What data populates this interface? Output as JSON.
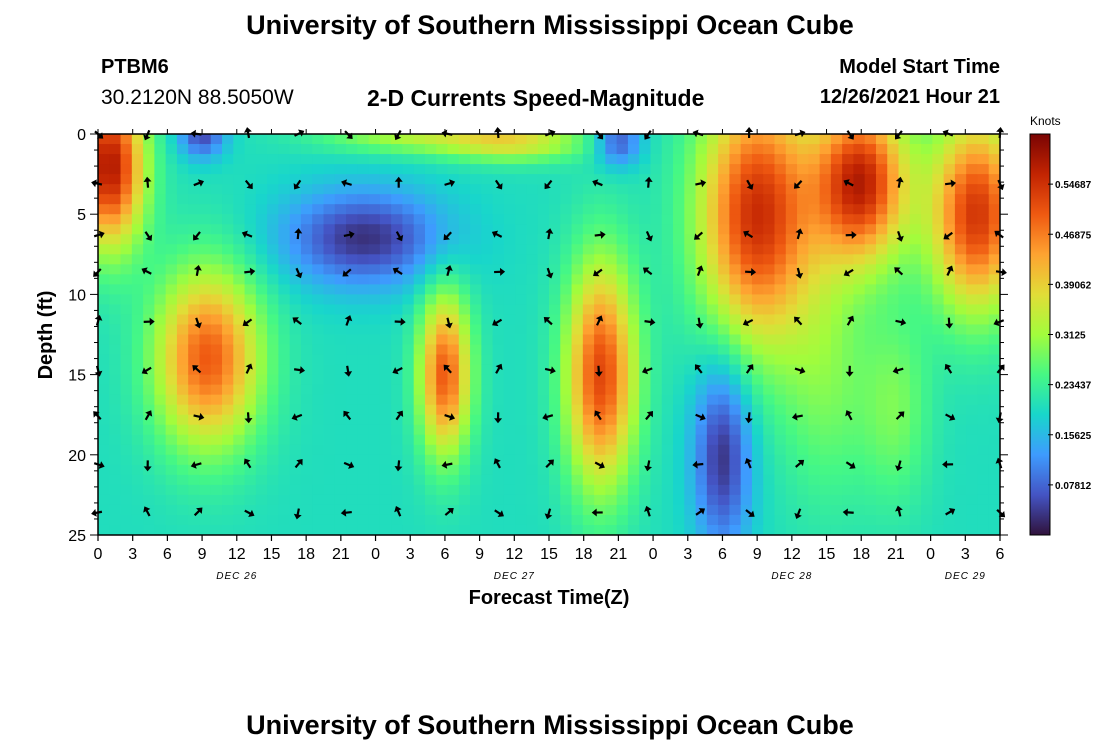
{
  "header": {
    "title": "University of Southern Mississippi Ocean Cube",
    "station_id": "PTBM6",
    "coordinates": "30.2120N  88.5050W",
    "subtitle": "2-D Currents Speed-Magnitude",
    "model_start_label": "Model Start Time",
    "model_start_value": "12/26/2021 Hour 21"
  },
  "footer": {
    "title": "University of Southern Mississippi Ocean Cube"
  },
  "chart_data": {
    "type": "heatmap",
    "title": "2-D Currents Speed-Magnitude",
    "xlabel": "Forecast Time(Z)",
    "ylabel": "Depth (ft)",
    "x_ticks": [
      "0",
      "3",
      "6",
      "9",
      "12",
      "15",
      "18",
      "21",
      "0",
      "3",
      "6",
      "9",
      "12",
      "15",
      "18",
      "21",
      "0",
      "3",
      "6",
      "9",
      "12",
      "15",
      "18",
      "21",
      "0",
      "3",
      "6"
    ],
    "x_tick_hours": [
      0,
      3,
      6,
      9,
      12,
      15,
      18,
      21,
      24,
      27,
      30,
      33,
      36,
      39,
      42,
      45,
      48,
      51,
      54,
      57,
      60,
      63,
      66,
      69,
      72,
      75,
      78
    ],
    "day_labels": [
      {
        "text": "DEC 26",
        "hour": 12
      },
      {
        "text": "DEC 27",
        "hour": 36
      },
      {
        "text": "DEC 28",
        "hour": 60
      },
      {
        "text": "DEC 29",
        "hour": 75
      }
    ],
    "xlim": [
      0,
      78
    ],
    "y_ticks": [
      0,
      5,
      10,
      15,
      20,
      25
    ],
    "ylim": [
      0,
      25
    ],
    "colorbar": {
      "label": "Knots",
      "range": [
        0,
        0.625
      ],
      "tick_labels": [
        "0.54687",
        "0.46875",
        "0.39062",
        "0.3125",
        "0.23437",
        "0.15625",
        "0.07812"
      ],
      "tick_values": [
        0.54687,
        0.46875,
        0.39062,
        0.3125,
        0.23437,
        0.15625,
        0.07812
      ]
    },
    "arrow_hours": [
      0,
      4.3,
      8.6,
      13,
      17.3,
      21.6,
      26,
      30.3,
      34.6,
      39,
      43.3,
      47.6,
      52,
      56.3,
      60.6,
      65,
      69.3,
      73.6,
      78
    ],
    "arrow_depths": [
      0,
      3.1,
      6.3,
      8.6,
      11.7,
      14.7,
      17.6,
      20.6,
      23.6
    ],
    "speed_features": [
      {
        "hour": 1,
        "depth": 2,
        "speed": 0.58,
        "sh": 3,
        "sd": 5
      },
      {
        "hour": 9,
        "depth": 0,
        "speed": 0.05,
        "sh": 2,
        "sd": 1.5
      },
      {
        "hour": 9.5,
        "depth": 14,
        "speed": 0.5,
        "sh": 4.5,
        "sd": 5.5
      },
      {
        "hour": 6,
        "depth": 22,
        "speed": 0.2,
        "sh": 5,
        "sd": 3
      },
      {
        "hour": 23,
        "depth": 6.5,
        "speed": 0.03,
        "sh": 7,
        "sd": 3
      },
      {
        "hour": 27,
        "depth": 0,
        "speed": 0.32,
        "sh": 8,
        "sd": 1.2
      },
      {
        "hour": 36,
        "depth": 0.5,
        "speed": 0.36,
        "sh": 6,
        "sd": 1.2
      },
      {
        "hour": 30,
        "depth": 15,
        "speed": 0.5,
        "sh": 2.2,
        "sd": 5
      },
      {
        "hour": 43.5,
        "depth": 15,
        "speed": 0.52,
        "sh": 3,
        "sd": 7
      },
      {
        "hour": 45,
        "depth": 0.5,
        "speed": 0.06,
        "sh": 2,
        "sd": 1.5
      },
      {
        "hour": 54,
        "depth": 20,
        "speed": 0.03,
        "sh": 2.5,
        "sd": 6
      },
      {
        "hour": 57,
        "depth": 5,
        "speed": 0.55,
        "sh": 5,
        "sd": 8
      },
      {
        "hour": 66,
        "depth": 3,
        "speed": 0.56,
        "sh": 4,
        "sd": 5
      },
      {
        "hour": 76,
        "depth": 5,
        "speed": 0.54,
        "sh": 4,
        "sd": 6
      },
      {
        "hour": 63,
        "depth": 15,
        "speed": 0.28,
        "sh": 4,
        "sd": 8
      },
      {
        "hour": 69,
        "depth": 17,
        "speed": 0.28,
        "sh": 3,
        "sd": 6
      }
    ]
  }
}
